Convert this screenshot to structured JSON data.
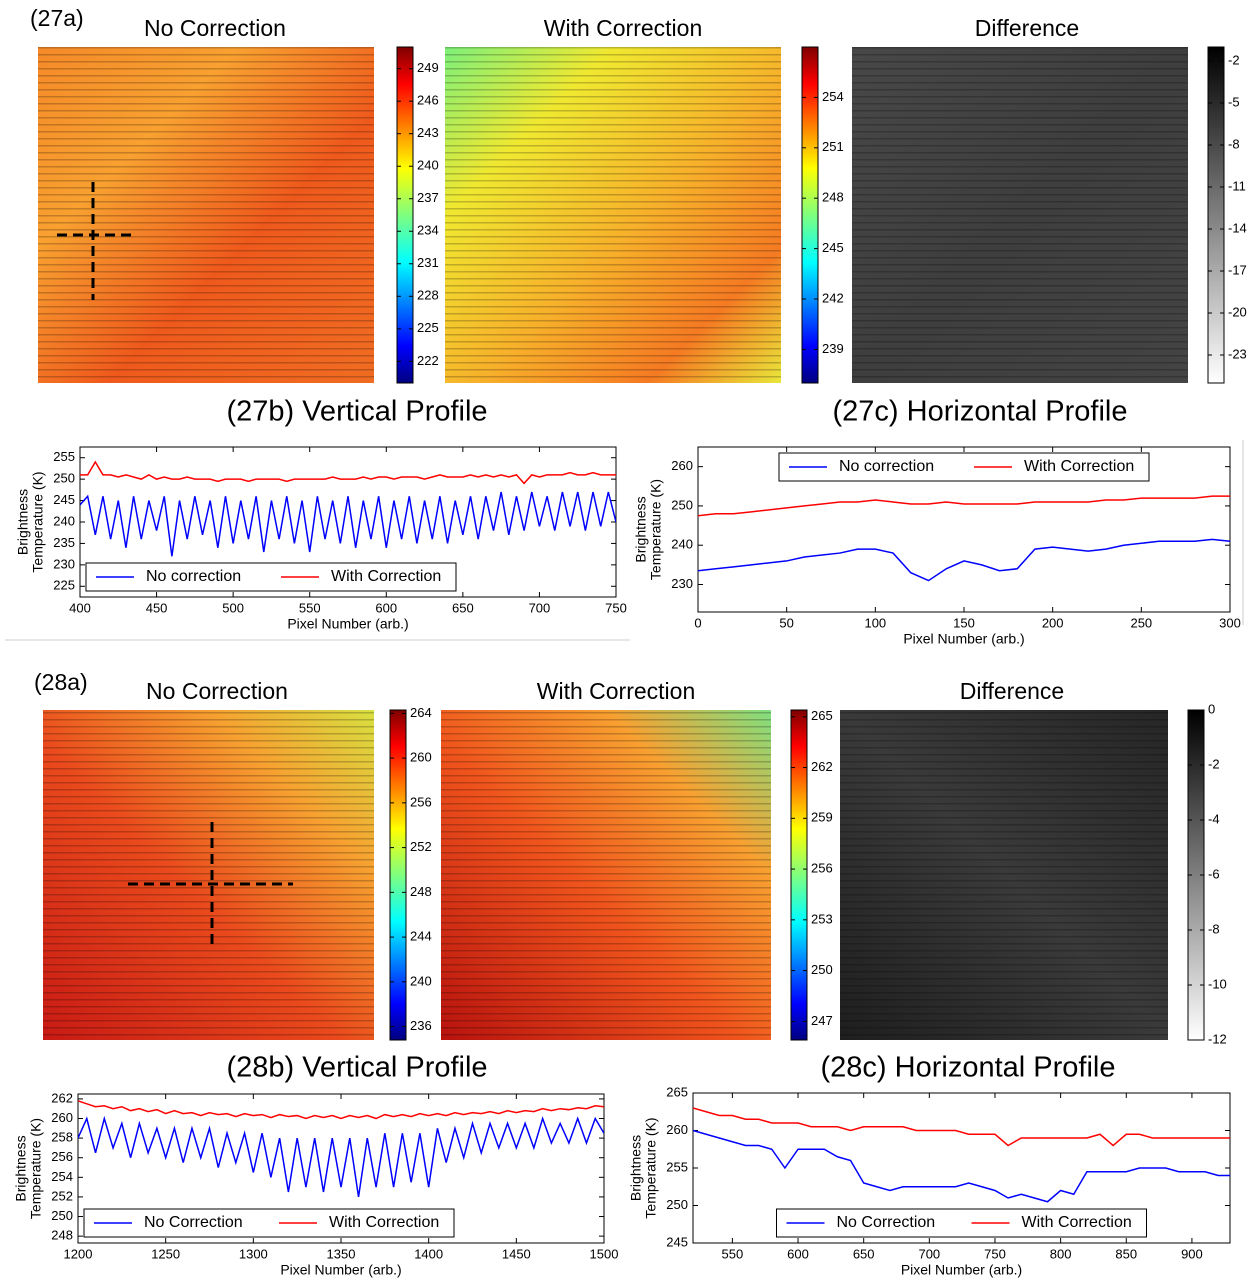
{
  "chart_data": [
    {
      "type": "heatmap",
      "panel_label": "(27a)",
      "title": "No Correction",
      "colormap": "jet",
      "clim": [
        220,
        251
      ],
      "cticks": [
        249,
        246,
        243,
        240,
        237,
        234,
        231,
        228,
        225,
        222
      ]
    },
    {
      "type": "heatmap",
      "title": "With Correction",
      "colormap": "jet",
      "clim": [
        237,
        257
      ],
      "cticks": [
        254,
        251,
        248,
        245,
        242,
        239
      ]
    },
    {
      "type": "heatmap",
      "title": "Difference",
      "colormap": "gray_r",
      "clim": [
        -25,
        -1
      ],
      "cticks": [
        -2,
        -5,
        -8,
        -11,
        -14,
        -17,
        -20,
        -23
      ]
    },
    {
      "type": "heatmap",
      "panel_label": "(28a)",
      "title": "No Correction",
      "colormap": "jet",
      "clim": [
        234.8,
        264.3
      ],
      "cticks": [
        264,
        260,
        256,
        252,
        248,
        244,
        240,
        236
      ]
    },
    {
      "type": "heatmap",
      "title": "With Correction",
      "colormap": "jet",
      "clim": [
        245.9,
        265.4
      ],
      "cticks": [
        265,
        262,
        259,
        256,
        253,
        250,
        247
      ]
    },
    {
      "type": "heatmap",
      "title": "Difference",
      "colormap": "gray_r",
      "clim": [
        -12,
        0
      ],
      "cticks": [
        0,
        -2,
        -4,
        -6,
        -8,
        -10,
        -12
      ]
    },
    {
      "type": "line",
      "title": "(27b) Vertical Profile",
      "xlabel": "Pixel Number (arb.)",
      "ylabel": [
        "Brightness",
        "Temperature (K)"
      ],
      "xlim": [
        400,
        750
      ],
      "xticks": [
        400,
        450,
        500,
        550,
        600,
        650,
        700,
        750
      ],
      "ylim": [
        222.5,
        257.5
      ],
      "yticks": [
        225,
        230,
        235,
        240,
        245,
        250,
        255
      ],
      "legend": "lower left",
      "x": [
        400,
        405,
        410,
        415,
        420,
        425,
        430,
        435,
        440,
        445,
        450,
        455,
        460,
        465,
        470,
        475,
        480,
        485,
        490,
        495,
        500,
        505,
        510,
        515,
        520,
        525,
        530,
        535,
        540,
        545,
        550,
        555,
        560,
        565,
        570,
        575,
        580,
        585,
        590,
        595,
        600,
        605,
        610,
        615,
        620,
        625,
        630,
        635,
        640,
        645,
        650,
        655,
        660,
        665,
        670,
        675,
        680,
        685,
        690,
        695,
        700,
        705,
        710,
        715,
        720,
        725,
        730,
        735,
        740,
        745,
        750
      ],
      "series": [
        {
          "name": "No correction",
          "color": "#0000ff",
          "values": [
            244,
            246,
            237,
            246,
            236,
            245,
            234,
            246,
            236,
            245,
            238,
            246,
            232,
            245,
            236,
            246,
            237,
            245,
            234,
            246,
            235,
            245,
            236,
            246,
            233,
            245,
            236,
            246,
            235,
            245,
            233,
            246,
            236,
            245,
            235,
            246,
            234,
            245,
            236,
            246,
            234,
            245,
            236,
            246,
            235,
            245,
            236,
            246,
            235,
            245,
            237,
            246,
            236,
            246,
            238,
            247,
            237,
            246,
            238,
            247,
            239,
            246,
            238,
            247,
            239,
            247,
            238,
            247,
            239,
            247,
            240
          ]
        },
        {
          "name": "With Correction",
          "color": "#ff0000",
          "values": [
            251,
            251,
            254,
            251,
            251,
            250.5,
            251,
            250.5,
            250,
            251,
            250,
            250.5,
            250,
            250,
            250.5,
            250,
            250,
            250,
            249.5,
            250,
            250,
            250,
            249.5,
            250,
            250,
            250,
            250,
            249.5,
            250,
            250,
            250,
            250,
            250,
            250.5,
            250,
            250,
            250,
            250.5,
            250,
            250.5,
            250.5,
            250,
            250.5,
            250.5,
            250.5,
            250,
            250.5,
            251,
            250.5,
            250.5,
            250.5,
            251,
            250.5,
            251,
            250.5,
            251,
            250.5,
            251,
            249,
            251,
            250.5,
            251,
            251,
            251,
            251.5,
            251,
            251,
            251.5,
            251,
            251,
            251
          ]
        }
      ]
    },
    {
      "type": "line",
      "title": "(27c) Horizontal Profile",
      "xlabel": "Pixel Number (arb.)",
      "ylabel": [
        "Brightness",
        "Temperature (K)"
      ],
      "xlim": [
        0,
        300
      ],
      "xticks": [
        0,
        50,
        100,
        150,
        200,
        250,
        300
      ],
      "ylim": [
        223,
        265
      ],
      "yticks": [
        230,
        240,
        250,
        260
      ],
      "legend": "upper center",
      "x": [
        0,
        10,
        20,
        30,
        40,
        50,
        60,
        70,
        80,
        90,
        100,
        110,
        120,
        130,
        140,
        150,
        160,
        170,
        180,
        190,
        200,
        210,
        220,
        230,
        240,
        250,
        260,
        270,
        280,
        290,
        300
      ],
      "series": [
        {
          "name": "No correction",
          "color": "#0000ff",
          "values": [
            233.5,
            234,
            234.5,
            235,
            235.5,
            236,
            237,
            237.5,
            238,
            239,
            239,
            238,
            233,
            231,
            234,
            236,
            235,
            233.5,
            234,
            239,
            239.5,
            239,
            238.5,
            239,
            240,
            240.5,
            241,
            241,
            241,
            241.5,
            241
          ]
        },
        {
          "name": "With Correction",
          "color": "#ff0000",
          "values": [
            247.5,
            248,
            248,
            248.5,
            249,
            249.5,
            250,
            250.5,
            251,
            251,
            251.5,
            251,
            250.5,
            250.5,
            251,
            250.5,
            250.5,
            250.5,
            250.5,
            251,
            251,
            251,
            251,
            251.5,
            251.5,
            252,
            252,
            252,
            252,
            252.5,
            252.5
          ]
        }
      ]
    },
    {
      "type": "line",
      "title": "(28b) Vertical Profile",
      "xlabel": "Pixel Number (arb.)",
      "ylabel": [
        "Brightness",
        "Temperature (K)"
      ],
      "xlim": [
        1200,
        1500
      ],
      "xticks": [
        1200,
        1250,
        1300,
        1350,
        1400,
        1450,
        1500
      ],
      "ylim": [
        247.3,
        262.5
      ],
      "yticks": [
        248,
        250,
        252,
        254,
        256,
        258,
        260,
        262
      ],
      "legend": "lower left",
      "x": [
        1200,
        1205,
        1210,
        1215,
        1220,
        1225,
        1230,
        1235,
        1240,
        1245,
        1250,
        1255,
        1260,
        1265,
        1270,
        1275,
        1280,
        1285,
        1290,
        1295,
        1300,
        1305,
        1310,
        1315,
        1320,
        1325,
        1330,
        1335,
        1340,
        1345,
        1350,
        1355,
        1360,
        1365,
        1370,
        1375,
        1380,
        1385,
        1390,
        1395,
        1400,
        1405,
        1410,
        1415,
        1420,
        1425,
        1430,
        1435,
        1440,
        1445,
        1450,
        1455,
        1460,
        1465,
        1470,
        1475,
        1480,
        1485,
        1490,
        1495,
        1500
      ],
      "series": [
        {
          "name": "No Correction",
          "color": "#0000ff",
          "values": [
            258,
            260,
            256.5,
            260,
            257,
            259.5,
            256,
            259.5,
            256.5,
            259,
            256,
            259,
            255.5,
            259,
            256,
            259,
            255,
            258.5,
            255.5,
            258.5,
            254.5,
            258.5,
            254,
            258,
            252.5,
            258,
            253,
            258,
            252.5,
            258,
            253,
            258,
            252,
            258,
            253,
            258.5,
            253,
            258.5,
            253.5,
            258.5,
            253,
            259,
            255.5,
            259,
            256,
            259.5,
            256.5,
            259.5,
            257,
            259.5,
            257,
            259.5,
            257,
            260,
            257.5,
            259.5,
            257.5,
            260,
            257.5,
            260,
            258.5
          ]
        },
        {
          "name": "With Correction",
          "color": "#ff0000",
          "values": [
            261.8,
            261.5,
            261.2,
            261.3,
            261,
            261.2,
            260.8,
            261,
            260.7,
            260.9,
            260.5,
            260.8,
            260.5,
            260.6,
            260.3,
            260.6,
            260.4,
            260.5,
            260.2,
            260.5,
            260.3,
            260.4,
            260.1,
            260.4,
            260.2,
            260.3,
            260,
            260.3,
            260.1,
            260.3,
            260,
            260.3,
            260.1,
            260.3,
            260,
            260.4,
            260.2,
            260.4,
            260.2,
            260.5,
            260.3,
            260.5,
            260.3,
            260.6,
            260.4,
            260.6,
            260.5,
            260.7,
            260.5,
            260.8,
            260.6,
            260.8,
            260.7,
            261,
            260.8,
            261,
            260.9,
            261.1,
            261,
            261.3,
            261.2
          ]
        }
      ]
    },
    {
      "type": "line",
      "title": "(28c) Horizontal Profile",
      "xlabel": "Pixel Number (arb.)",
      "ylabel": [
        "Brightness",
        "Temperature (K)"
      ],
      "xlim": [
        520,
        929
      ],
      "xticks": [
        550,
        600,
        650,
        700,
        750,
        800,
        850,
        900
      ],
      "ylim": [
        245,
        265
      ],
      "yticks": [
        245,
        250,
        255,
        260,
        265
      ],
      "legend": "lower center",
      "x": [
        520,
        530,
        540,
        550,
        560,
        570,
        580,
        590,
        600,
        610,
        620,
        630,
        640,
        650,
        660,
        670,
        680,
        690,
        700,
        710,
        720,
        730,
        740,
        750,
        760,
        770,
        780,
        790,
        800,
        810,
        820,
        830,
        840,
        850,
        860,
        870,
        880,
        890,
        900,
        910,
        920,
        930
      ],
      "series": [
        {
          "name": "No Correction",
          "color": "#0000ff",
          "values": [
            260,
            259.5,
            259,
            258.5,
            258,
            258,
            257.5,
            255,
            257.5,
            257.5,
            257.5,
            256.5,
            256,
            253,
            252.5,
            252,
            252.5,
            252.5,
            252.5,
            252.5,
            252.5,
            253,
            252.5,
            252,
            251,
            251.5,
            251,
            250.5,
            252,
            251.5,
            254.5,
            254.5,
            254.5,
            254.5,
            255,
            255,
            255,
            254.5,
            254.5,
            254.5,
            254,
            254
          ]
        },
        {
          "name": "With Correction",
          "color": "#ff0000",
          "values": [
            263,
            262.5,
            262,
            262,
            261.5,
            261.5,
            261,
            261,
            261,
            260.5,
            260.5,
            260.5,
            260,
            260.5,
            260.5,
            260.5,
            260.5,
            260,
            260,
            260,
            260,
            259.5,
            259.5,
            259.5,
            258,
            259,
            259,
            259,
            259,
            259,
            259,
            259.5,
            258,
            259.5,
            259.5,
            259,
            259,
            259,
            259,
            259,
            259,
            259
          ]
        }
      ]
    }
  ]
}
